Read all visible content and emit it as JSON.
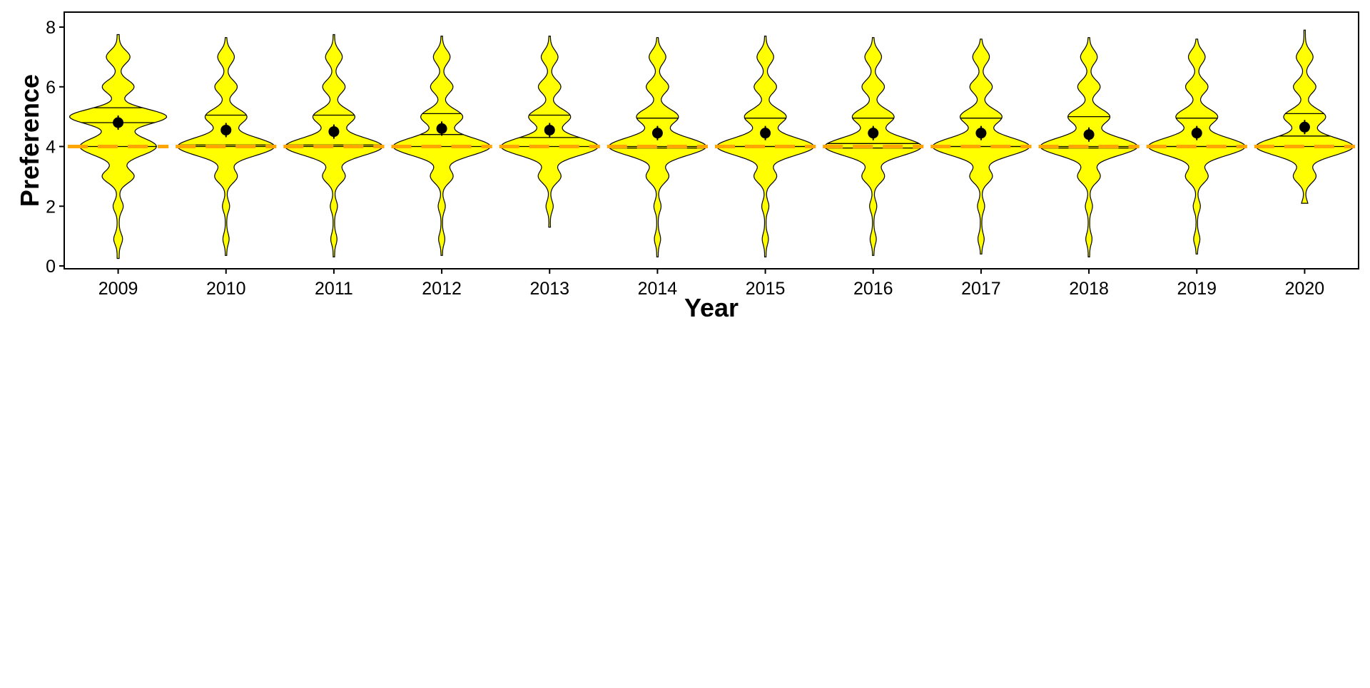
{
  "chart_data": {
    "type": "violin",
    "xlabel": "Year",
    "ylabel": "Preference",
    "ylim": [
      0,
      8
    ],
    "yticks": [
      0,
      2,
      4,
      6,
      8
    ],
    "categories": [
      "2009",
      "2010",
      "2011",
      "2012",
      "2013",
      "2014",
      "2015",
      "2016",
      "2017",
      "2018",
      "2019",
      "2020"
    ],
    "means": [
      4.8,
      4.55,
      4.5,
      4.6,
      4.55,
      4.45,
      4.45,
      4.45,
      4.45,
      4.4,
      4.45,
      4.65
    ],
    "quartiles": {
      "q1": [
        4.0,
        4.0,
        4.0,
        4.0,
        4.0,
        3.95,
        4.0,
        3.95,
        4.0,
        3.95,
        4.0,
        4.0
      ],
      "median": [
        4.8,
        4.05,
        4.05,
        4.4,
        4.3,
        4.0,
        4.0,
        4.1,
        4.0,
        4.0,
        4.0,
        4.35
      ],
      "q3": [
        5.3,
        5.05,
        5.05,
        5.1,
        5.05,
        4.95,
        4.95,
        4.95,
        4.95,
        5.0,
        4.95,
        5.1
      ]
    },
    "y_range": [
      [
        0.25,
        7.75
      ],
      [
        0.35,
        7.65
      ],
      [
        0.3,
        7.75
      ],
      [
        0.35,
        7.7
      ],
      [
        1.3,
        7.7
      ],
      [
        0.3,
        7.65
      ],
      [
        0.3,
        7.7
      ],
      [
        0.35,
        7.65
      ],
      [
        0.4,
        7.6
      ],
      [
        0.3,
        7.65
      ],
      [
        0.4,
        7.6
      ],
      [
        2.1,
        7.9
      ]
    ],
    "reference_line": {
      "y": 4,
      "color": "#FFA500",
      "style": "dashed"
    },
    "violin_fill": "#FFFF00",
    "grid": false,
    "legend": "none"
  }
}
